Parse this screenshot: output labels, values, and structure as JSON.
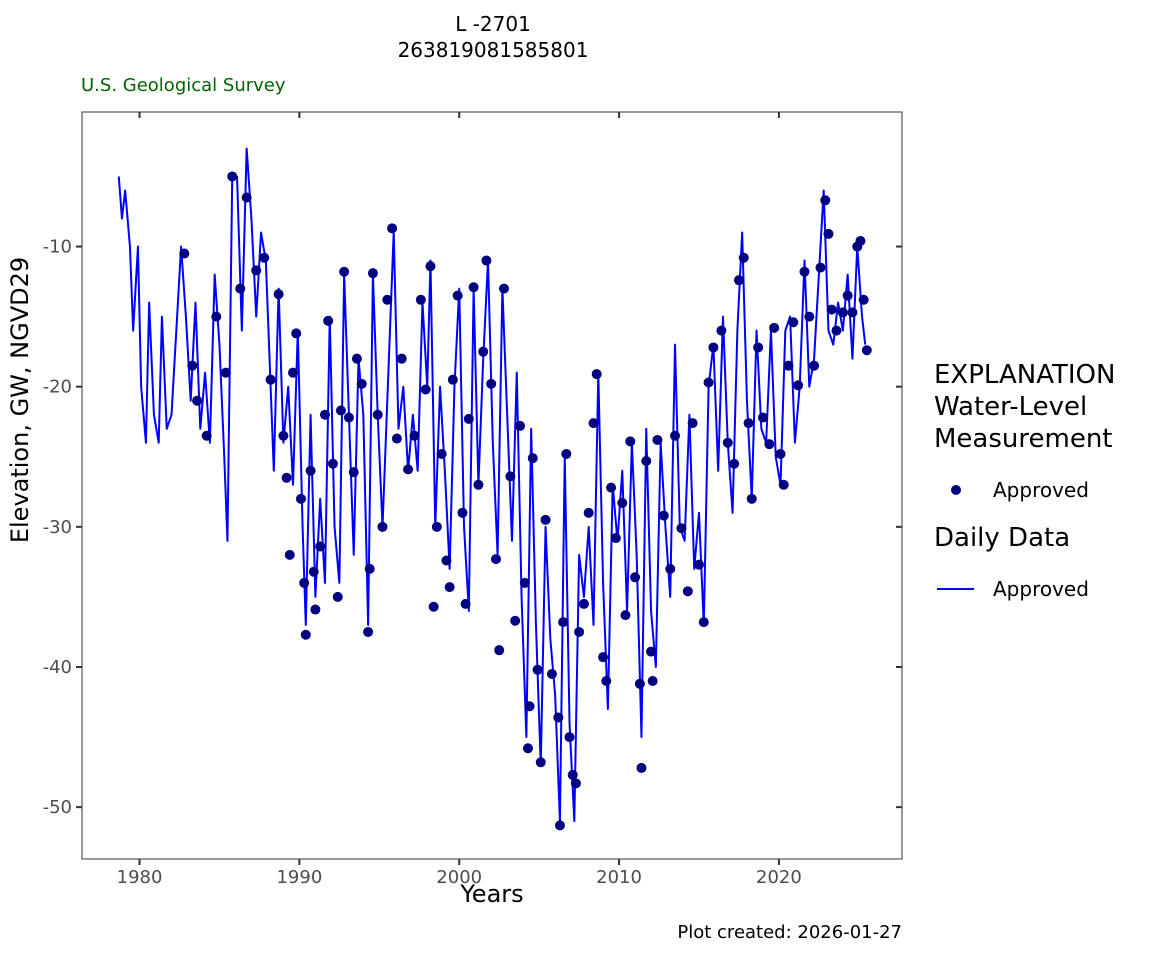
{
  "title": {
    "line1": "L -2701",
    "line2": "263819081585801"
  },
  "agency": "U.S. Geological Survey",
  "footer": "Plot created: 2026-01-27",
  "legend": {
    "heading": "EXPLANATION",
    "group1_title_line1": "Water-Level",
    "group1_title_line2": "Measurement",
    "group1_item": "Approved",
    "group2_title": "Daily Data",
    "group2_item": "Approved"
  },
  "colors": {
    "line": "#0000ff",
    "points": "#000080"
  },
  "chart_data": {
    "type": "line",
    "xlabel": "Years",
    "ylabel": "Elevation, GW, NGVD29",
    "xlim": [
      1976.4,
      2027.7
    ],
    "ylim": [
      -53.7,
      -0.4
    ],
    "xticks": [
      1980,
      1990,
      2000,
      2010,
      2020
    ],
    "yticks": [
      -10,
      -20,
      -30,
      -40,
      -50
    ],
    "grid": false,
    "legend_position": "right",
    "series": [
      {
        "name": "Daily Data - Approved",
        "type": "line",
        "points": [
          [
            1978.7,
            -5
          ],
          [
            1978.9,
            -8
          ],
          [
            1979.1,
            -6
          ],
          [
            1979.4,
            -10
          ],
          [
            1979.6,
            -16
          ],
          [
            1979.9,
            -10
          ],
          [
            1980.1,
            -20
          ],
          [
            1980.4,
            -24
          ],
          [
            1980.6,
            -14
          ],
          [
            1980.9,
            -22
          ],
          [
            1981.2,
            -24
          ],
          [
            1981.4,
            -15
          ],
          [
            1981.7,
            -23
          ],
          [
            1982.0,
            -22
          ],
          [
            1982.3,
            -16
          ],
          [
            1982.6,
            -10
          ],
          [
            1982.9,
            -15
          ],
          [
            1983.2,
            -21
          ],
          [
            1983.5,
            -14
          ],
          [
            1983.8,
            -23
          ],
          [
            1984.1,
            -19
          ],
          [
            1984.4,
            -24
          ],
          [
            1984.7,
            -12
          ],
          [
            1985.0,
            -17
          ],
          [
            1985.3,
            -25
          ],
          [
            1985.5,
            -31
          ],
          [
            1985.8,
            -5
          ],
          [
            1986.1,
            -5
          ],
          [
            1986.4,
            -16
          ],
          [
            1986.7,
            -3
          ],
          [
            1987.0,
            -8
          ],
          [
            1987.3,
            -15
          ],
          [
            1987.6,
            -9
          ],
          [
            1987.9,
            -11
          ],
          [
            1988.2,
            -20
          ],
          [
            1988.4,
            -26
          ],
          [
            1988.7,
            -13
          ],
          [
            1989.0,
            -24
          ],
          [
            1989.3,
            -20
          ],
          [
            1989.6,
            -27
          ],
          [
            1989.9,
            -16
          ],
          [
            1990.2,
            -30
          ],
          [
            1990.4,
            -37
          ],
          [
            1990.7,
            -22
          ],
          [
            1991.0,
            -35
          ],
          [
            1991.3,
            -28
          ],
          [
            1991.6,
            -34
          ],
          [
            1991.9,
            -15
          ],
          [
            1992.2,
            -30
          ],
          [
            1992.5,
            -34
          ],
          [
            1992.8,
            -12
          ],
          [
            1993.1,
            -22
          ],
          [
            1993.4,
            -32
          ],
          [
            1993.7,
            -18
          ],
          [
            1994.0,
            -22
          ],
          [
            1994.3,
            -37
          ],
          [
            1994.6,
            -12
          ],
          [
            1994.9,
            -22
          ],
          [
            1995.2,
            -30
          ],
          [
            1995.6,
            -18
          ],
          [
            1995.9,
            -9
          ],
          [
            1996.2,
            -23
          ],
          [
            1996.5,
            -20
          ],
          [
            1996.8,
            -26
          ],
          [
            1997.1,
            -22
          ],
          [
            1997.4,
            -26
          ],
          [
            1997.7,
            -14
          ],
          [
            1998.0,
            -20
          ],
          [
            1998.2,
            -11
          ],
          [
            1998.5,
            -30
          ],
          [
            1998.8,
            -20
          ],
          [
            1999.1,
            -26
          ],
          [
            1999.4,
            -33
          ],
          [
            1999.7,
            -20
          ],
          [
            2000.0,
            -13
          ],
          [
            2000.3,
            -30
          ],
          [
            2000.6,
            -36
          ],
          [
            2000.9,
            -13
          ],
          [
            2001.2,
            -27
          ],
          [
            2001.5,
            -18
          ],
          [
            2001.8,
            -11
          ],
          [
            2002.1,
            -24
          ],
          [
            2002.4,
            -32
          ],
          [
            2002.7,
            -13
          ],
          [
            2003.0,
            -22
          ],
          [
            2003.3,
            -31
          ],
          [
            2003.6,
            -19
          ],
          [
            2003.9,
            -35
          ],
          [
            2004.2,
            -45
          ],
          [
            2004.5,
            -23
          ],
          [
            2004.8,
            -37
          ],
          [
            2005.1,
            -47
          ],
          [
            2005.4,
            -30
          ],
          [
            2005.7,
            -38
          ],
          [
            2006.0,
            -42
          ],
          [
            2006.3,
            -51
          ],
          [
            2006.6,
            -25
          ],
          [
            2006.9,
            -44
          ],
          [
            2007.2,
            -51
          ],
          [
            2007.5,
            -32
          ],
          [
            2007.8,
            -35
          ],
          [
            2008.1,
            -30
          ],
          [
            2008.4,
            -37
          ],
          [
            2008.7,
            -19
          ],
          [
            2009.0,
            -34
          ],
          [
            2009.3,
            -43
          ],
          [
            2009.6,
            -27
          ],
          [
            2009.9,
            -31
          ],
          [
            2010.2,
            -26
          ],
          [
            2010.5,
            -36
          ],
          [
            2010.8,
            -24
          ],
          [
            2011.1,
            -32
          ],
          [
            2011.4,
            -45
          ],
          [
            2011.7,
            -23
          ],
          [
            2012.0,
            -36
          ],
          [
            2012.3,
            -40
          ],
          [
            2012.6,
            -24
          ],
          [
            2012.9,
            -30
          ],
          [
            2013.2,
            -35
          ],
          [
            2013.5,
            -17
          ],
          [
            2013.8,
            -30
          ],
          [
            2014.1,
            -31
          ],
          [
            2014.4,
            -22
          ],
          [
            2014.7,
            -33
          ],
          [
            2015.0,
            -29
          ],
          [
            2015.3,
            -37
          ],
          [
            2015.6,
            -20
          ],
          [
            2015.9,
            -17
          ],
          [
            2016.2,
            -26
          ],
          [
            2016.5,
            -15
          ],
          [
            2016.8,
            -24
          ],
          [
            2017.1,
            -29
          ],
          [
            2017.4,
            -16
          ],
          [
            2017.7,
            -9
          ],
          [
            2018.0,
            -21
          ],
          [
            2018.3,
            -28
          ],
          [
            2018.6,
            -16
          ],
          [
            2018.9,
            -23
          ],
          [
            2019.2,
            -24
          ],
          [
            2019.5,
            -16
          ],
          [
            2019.8,
            -25
          ],
          [
            2020.1,
            -27
          ],
          [
            2020.4,
            -16
          ],
          [
            2020.7,
            -15
          ],
          [
            2021.0,
            -24
          ],
          [
            2021.3,
            -20
          ],
          [
            2021.6,
            -11
          ],
          [
            2021.9,
            -20
          ],
          [
            2022.2,
            -18
          ],
          [
            2022.5,
            -12
          ],
          [
            2022.8,
            -6
          ],
          [
            2023.1,
            -16
          ],
          [
            2023.4,
            -17
          ],
          [
            2023.7,
            -14
          ],
          [
            2024.0,
            -16
          ],
          [
            2024.3,
            -12
          ],
          [
            2024.6,
            -18
          ],
          [
            2024.9,
            -10
          ],
          [
            2025.2,
            -15
          ],
          [
            2025.4,
            -17
          ]
        ]
      },
      {
        "name": "Water-Level Measurement - Approved",
        "type": "scatter",
        "points": [
          [
            1982.8,
            -10.5
          ],
          [
            1983.3,
            -18.5
          ],
          [
            1983.6,
            -21
          ],
          [
            1984.2,
            -23.5
          ],
          [
            1984.8,
            -15
          ],
          [
            1985.4,
            -19
          ],
          [
            1985.8,
            -5
          ],
          [
            1986.3,
            -13
          ],
          [
            1986.7,
            -6.5
          ],
          [
            1987.3,
            -11.7
          ],
          [
            1987.8,
            -10.8
          ],
          [
            1988.2,
            -19.5
          ],
          [
            1988.7,
            -13.4
          ],
          [
            1989.0,
            -23.5
          ],
          [
            1989.2,
            -26.5
          ],
          [
            1989.4,
            -32
          ],
          [
            1989.6,
            -19
          ],
          [
            1989.8,
            -16.2
          ],
          [
            1990.1,
            -28
          ],
          [
            1990.3,
            -34
          ],
          [
            1990.4,
            -37.7
          ],
          [
            1990.7,
            -26
          ],
          [
            1990.9,
            -33.2
          ],
          [
            1991.0,
            -35.9
          ],
          [
            1991.3,
            -31.4
          ],
          [
            1991.6,
            -22
          ],
          [
            1991.8,
            -15.3
          ],
          [
            1992.1,
            -25.5
          ],
          [
            1992.4,
            -35
          ],
          [
            1992.6,
            -21.7
          ],
          [
            1992.8,
            -11.8
          ],
          [
            1993.1,
            -22.2
          ],
          [
            1993.4,
            -26.1
          ],
          [
            1993.6,
            -18
          ],
          [
            1993.9,
            -19.8
          ],
          [
            1994.3,
            -37.5
          ],
          [
            1994.4,
            -33
          ],
          [
            1994.6,
            -11.9
          ],
          [
            1994.9,
            -22
          ],
          [
            1995.2,
            -30
          ],
          [
            1995.5,
            -13.8
          ],
          [
            1995.8,
            -8.7
          ],
          [
            1996.1,
            -23.7
          ],
          [
            1996.4,
            -18
          ],
          [
            1996.8,
            -25.9
          ],
          [
            1997.2,
            -23.5
          ],
          [
            1997.6,
            -13.8
          ],
          [
            1997.9,
            -20.2
          ],
          [
            1998.2,
            -11.4
          ],
          [
            1998.4,
            -35.7
          ],
          [
            1998.6,
            -30
          ],
          [
            1998.9,
            -24.8
          ],
          [
            1999.2,
            -32.4
          ],
          [
            1999.4,
            -34.3
          ],
          [
            1999.6,
            -19.5
          ],
          [
            1999.9,
            -13.5
          ],
          [
            2000.2,
            -29
          ],
          [
            2000.4,
            -35.5
          ],
          [
            2000.6,
            -22.3
          ],
          [
            2000.9,
            -12.9
          ],
          [
            2001.2,
            -27
          ],
          [
            2001.5,
            -17.5
          ],
          [
            2001.7,
            -11
          ],
          [
            2002.0,
            -19.8
          ],
          [
            2002.3,
            -32.3
          ],
          [
            2002.5,
            -38.8
          ],
          [
            2002.8,
            -13
          ],
          [
            2003.2,
            -26.4
          ],
          [
            2003.5,
            -36.7
          ],
          [
            2003.8,
            -22.8
          ],
          [
            2004.1,
            -34
          ],
          [
            2004.3,
            -45.8
          ],
          [
            2004.4,
            -42.8
          ],
          [
            2004.6,
            -25.1
          ],
          [
            2004.9,
            -40.2
          ],
          [
            2005.1,
            -46.8
          ],
          [
            2005.4,
            -29.5
          ],
          [
            2005.8,
            -40.5
          ],
          [
            2006.2,
            -43.6
          ],
          [
            2006.3,
            -51.3
          ],
          [
            2006.5,
            -36.8
          ],
          [
            2006.7,
            -24.8
          ],
          [
            2006.9,
            -45
          ],
          [
            2007.1,
            -47.7
          ],
          [
            2007.3,
            -48.3
          ],
          [
            2007.5,
            -37.5
          ],
          [
            2007.8,
            -35.5
          ],
          [
            2008.1,
            -29
          ],
          [
            2008.4,
            -22.6
          ],
          [
            2008.6,
            -19.1
          ],
          [
            2009.0,
            -39.3
          ],
          [
            2009.2,
            -41
          ],
          [
            2009.5,
            -27.2
          ],
          [
            2009.8,
            -30.8
          ],
          [
            2010.2,
            -28.3
          ],
          [
            2010.4,
            -36.3
          ],
          [
            2010.7,
            -23.9
          ],
          [
            2011.0,
            -33.6
          ],
          [
            2011.3,
            -41.2
          ],
          [
            2011.4,
            -47.2
          ],
          [
            2011.7,
            -25.3
          ],
          [
            2012.0,
            -38.9
          ],
          [
            2012.1,
            -41
          ],
          [
            2012.4,
            -23.8
          ],
          [
            2012.8,
            -29.2
          ],
          [
            2013.2,
            -33
          ],
          [
            2013.5,
            -23.5
          ],
          [
            2013.9,
            -30.1
          ],
          [
            2014.3,
            -34.6
          ],
          [
            2014.6,
            -22.6
          ],
          [
            2015.0,
            -32.7
          ],
          [
            2015.3,
            -36.8
          ],
          [
            2015.6,
            -19.7
          ],
          [
            2015.9,
            -17.2
          ],
          [
            2016.4,
            -16
          ],
          [
            2016.8,
            -24
          ],
          [
            2017.2,
            -25.5
          ],
          [
            2017.5,
            -12.4
          ],
          [
            2017.8,
            -10.8
          ],
          [
            2018.1,
            -22.6
          ],
          [
            2018.3,
            -28
          ],
          [
            2018.7,
            -17.2
          ],
          [
            2019.0,
            -22.2
          ],
          [
            2019.4,
            -24.1
          ],
          [
            2019.7,
            -15.8
          ],
          [
            2020.1,
            -24.8
          ],
          [
            2020.3,
            -27
          ],
          [
            2020.6,
            -18.5
          ],
          [
            2020.9,
            -15.4
          ],
          [
            2021.2,
            -19.9
          ],
          [
            2021.6,
            -11.8
          ],
          [
            2021.9,
            -15
          ],
          [
            2022.2,
            -18.5
          ],
          [
            2022.6,
            -11.5
          ],
          [
            2022.9,
            -6.7
          ],
          [
            2023.1,
            -9.1
          ],
          [
            2023.3,
            -14.5
          ],
          [
            2023.6,
            -16
          ],
          [
            2024.0,
            -14.7
          ],
          [
            2024.3,
            -13.5
          ],
          [
            2024.6,
            -14.7
          ],
          [
            2024.9,
            -10
          ],
          [
            2025.1,
            -9.6
          ],
          [
            2025.3,
            -13.8
          ],
          [
            2025.5,
            -17.4
          ]
        ]
      }
    ]
  }
}
